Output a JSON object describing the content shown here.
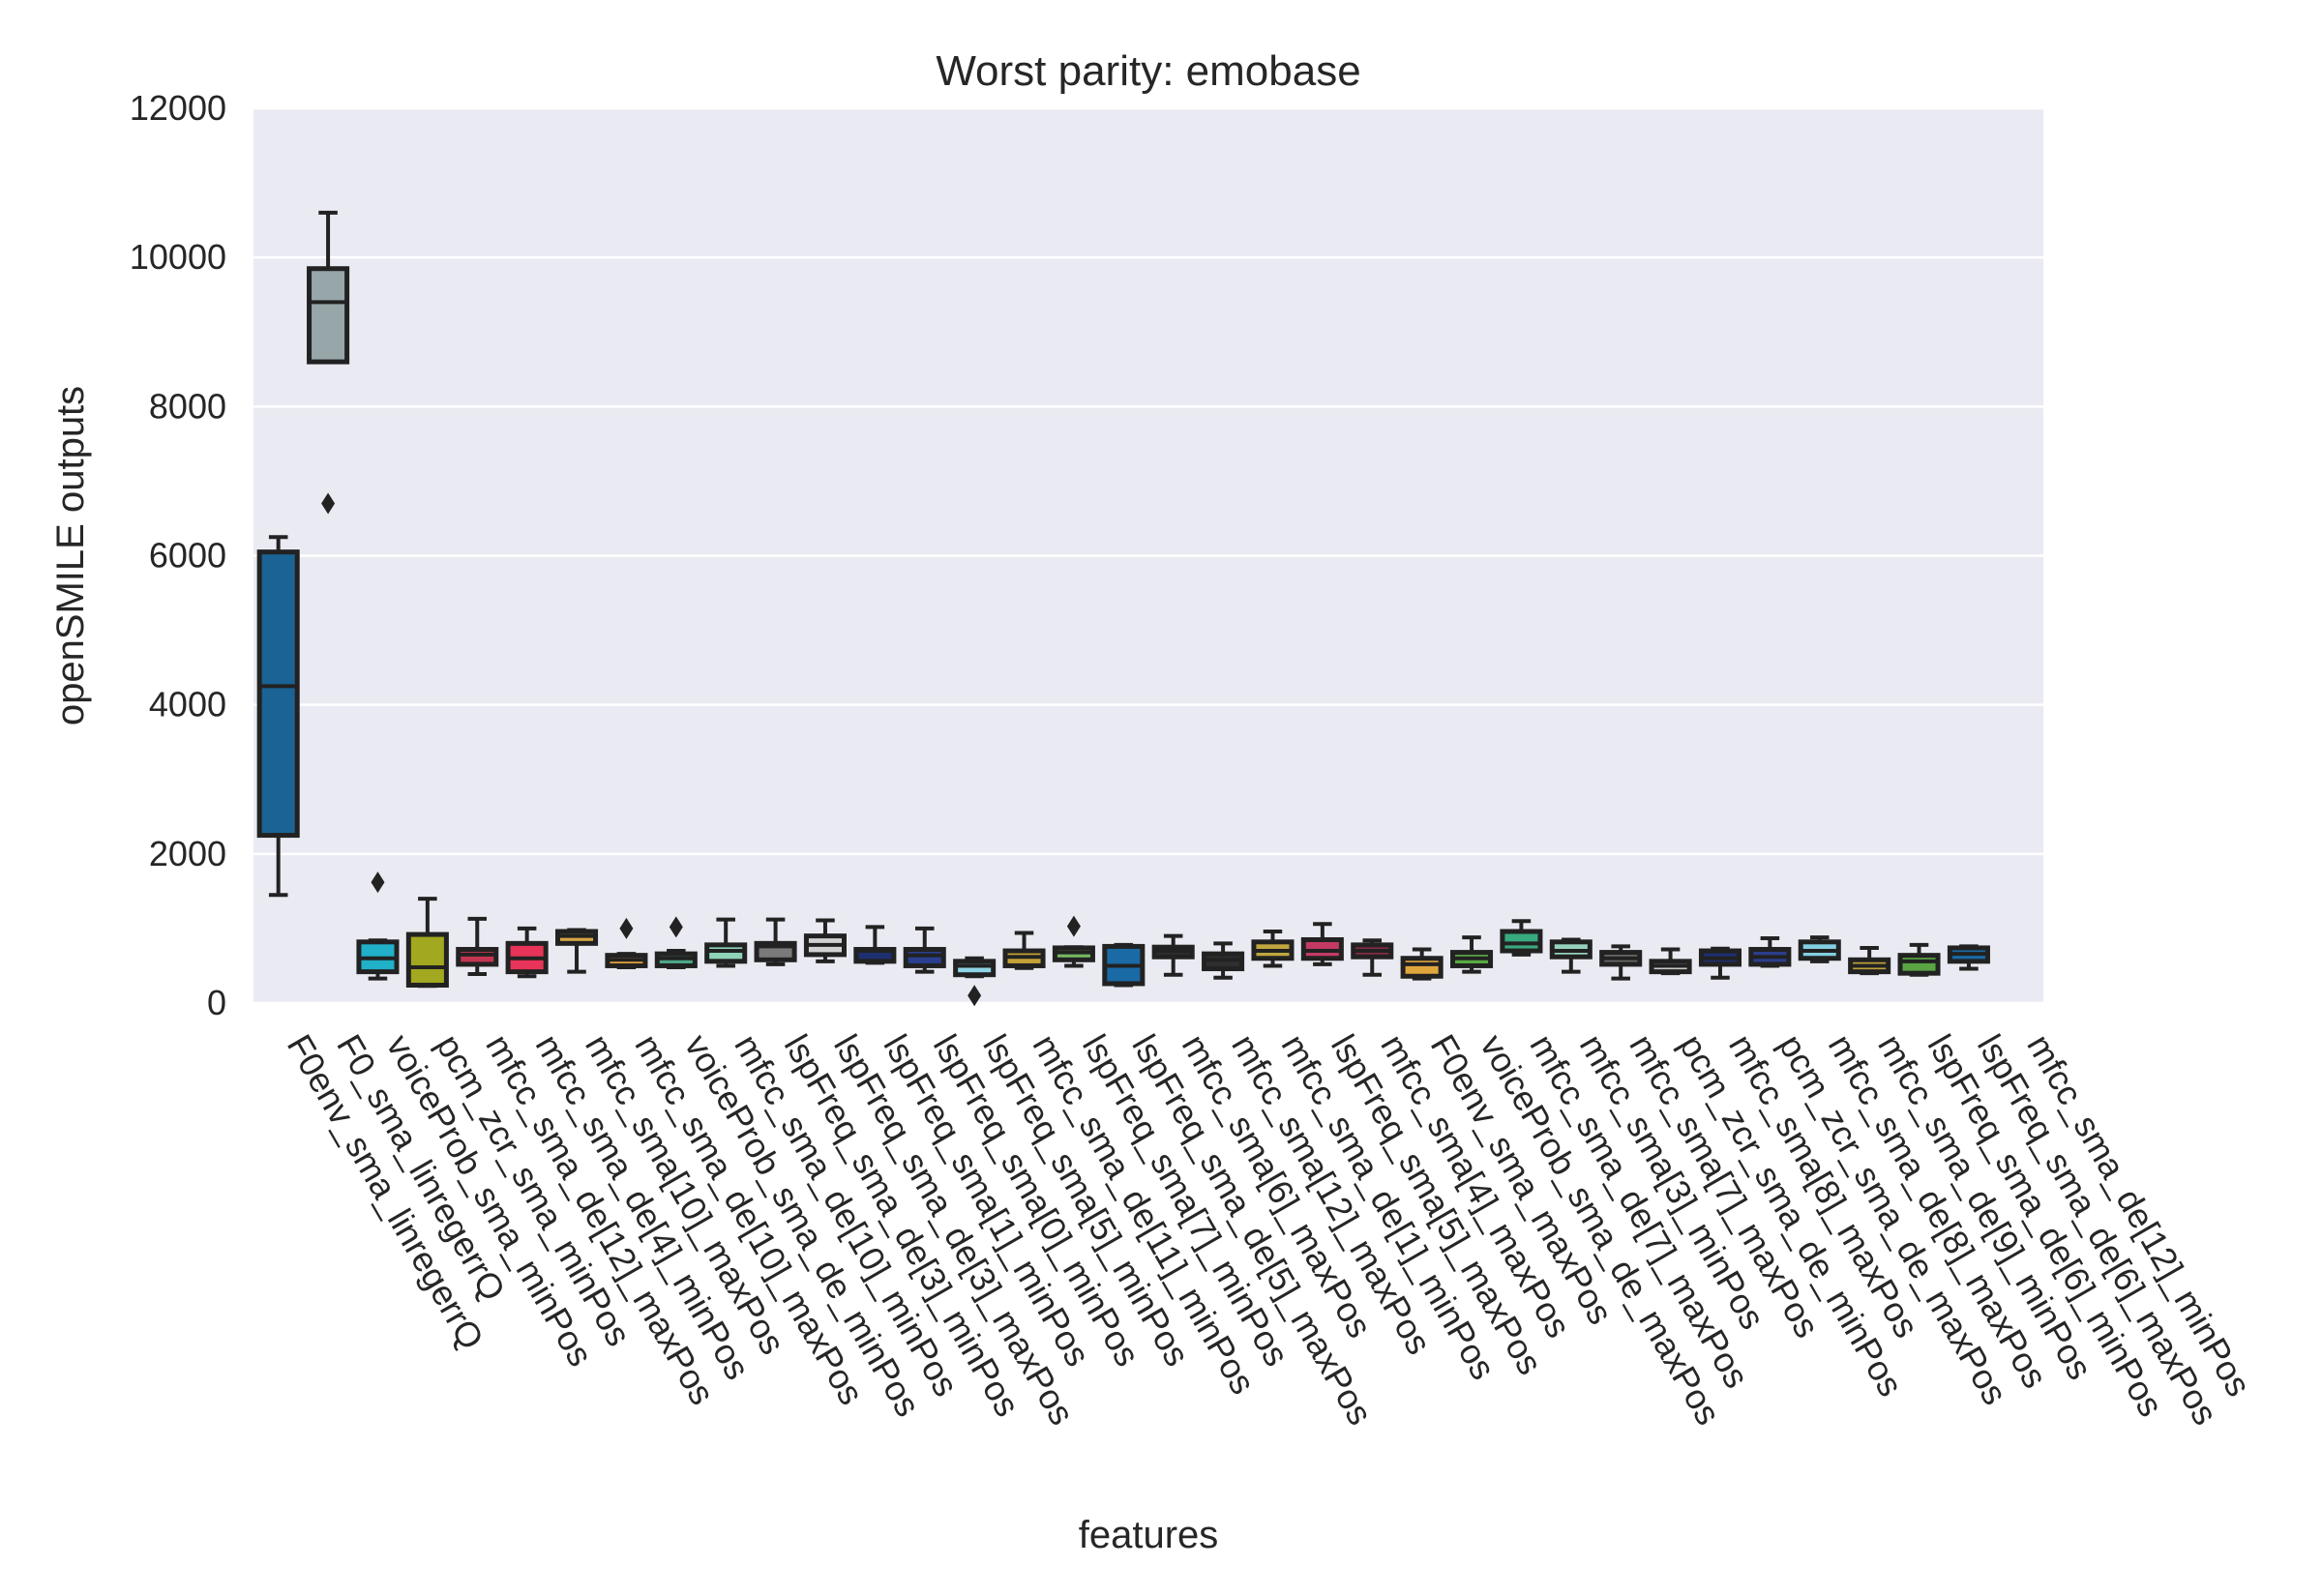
{
  "chart_data": {
    "type": "box",
    "title": "Worst parity: emobase",
    "xlabel": "features",
    "ylabel": "openSMILE outputs",
    "ylim": [
      0,
      12000
    ],
    "yticks": [
      0,
      2000,
      4000,
      6000,
      8000,
      10000,
      12000
    ],
    "grid": true,
    "background": "#eaeaf2",
    "edge_color": "#222222",
    "series": [
      {
        "category": "F0env_sma_linregerrQ",
        "min": 1450,
        "q1": 2250,
        "median": 4250,
        "q3": 6050,
        "max": 6250,
        "outliers": [],
        "color": "#1a6394"
      },
      {
        "category": "F0_sma_linregerrQ",
        "min": 8600,
        "q1": 8600,
        "median": 9400,
        "q3": 9850,
        "max": 10600,
        "outliers": [
          6700
        ],
        "color": "#97a6a9"
      },
      {
        "category": "voiceProb_sma_minPos",
        "min": 330,
        "q1": 420,
        "median": 600,
        "q3": 820,
        "max": 840,
        "outliers": [
          1620
        ],
        "color": "#20b0c8"
      },
      {
        "category": "pcm_zcr_sma_minPos",
        "min": 230,
        "q1": 240,
        "median": 480,
        "q3": 920,
        "max": 1400,
        "outliers": [],
        "color": "#a2a81f"
      },
      {
        "category": "mfcc_sma_de[12]_maxPos",
        "min": 390,
        "q1": 520,
        "median": 650,
        "q3": 720,
        "max": 1130,
        "outliers": [],
        "color": "#c43552"
      },
      {
        "category": "mfcc_sma_de[4]_minPos",
        "min": 360,
        "q1": 420,
        "median": 600,
        "q3": 800,
        "max": 1000,
        "outliers": [],
        "color": "#e83458"
      },
      {
        "category": "mfcc_sma[10]_maxPos",
        "min": 420,
        "q1": 800,
        "median": 900,
        "q3": 960,
        "max": 980,
        "outliers": [],
        "color": "#d8a545"
      },
      {
        "category": "mfcc_sma_de[10]_maxPos",
        "min": 480,
        "q1": 500,
        "median": 580,
        "q3": 640,
        "max": 660,
        "outliers": [
          1000
        ],
        "color": "#e8a53a"
      },
      {
        "category": "voiceProb_sma_de_minPos",
        "min": 480,
        "q1": 500,
        "median": 600,
        "q3": 660,
        "max": 700,
        "outliers": [
          1020
        ],
        "color": "#4da88a"
      },
      {
        "category": "mfcc_sma_de[10]_minPos",
        "min": 500,
        "q1": 560,
        "median": 700,
        "q3": 780,
        "max": 1120,
        "outliers": [],
        "color": "#8ed2b8"
      },
      {
        "category": "lspFreq_sma_de[3]_minPos",
        "min": 520,
        "q1": 580,
        "median": 760,
        "q3": 800,
        "max": 1120,
        "outliers": [],
        "color": "#7a7a7a"
      },
      {
        "category": "lspFreq_sma_de[3]_maxPos",
        "min": 560,
        "q1": 650,
        "median": 780,
        "q3": 900,
        "max": 1110,
        "outliers": [],
        "color": "#d2d2d2"
      },
      {
        "category": "lspFreq_sma[1]_minPos",
        "min": 540,
        "q1": 560,
        "median": 700,
        "q3": 720,
        "max": 1020,
        "outliers": [],
        "color": "#1e2f70"
      },
      {
        "category": "lspFreq_sma[0]_minPos",
        "min": 420,
        "q1": 500,
        "median": 640,
        "q3": 720,
        "max": 1000,
        "outliers": [],
        "color": "#2a3f8f"
      },
      {
        "category": "lspFreq_sma[5]_minPos",
        "min": 360,
        "q1": 380,
        "median": 500,
        "q3": 560,
        "max": 600,
        "outliers": [
          100
        ],
        "color": "#8fd4e6"
      },
      {
        "category": "mfcc_sma_de[11]_minPos",
        "min": 470,
        "q1": 500,
        "median": 620,
        "q3": 700,
        "max": 940,
        "outliers": [],
        "color": "#c4a238"
      },
      {
        "category": "lspFreq_sma[7]_minPos",
        "min": 500,
        "q1": 580,
        "median": 680,
        "q3": 740,
        "max": 750,
        "outliers": [
          1030
        ],
        "color": "#76b85f"
      },
      {
        "category": "lspFreq_sma_de[5]_maxPos",
        "min": 240,
        "q1": 260,
        "median": 500,
        "q3": 760,
        "max": 780,
        "outliers": [],
        "color": "#1a6aa6"
      },
      {
        "category": "mfcc_sma[6]_maxPos",
        "min": 380,
        "q1": 620,
        "median": 700,
        "q3": 750,
        "max": 900,
        "outliers": [],
        "color": "#2f2f2f"
      },
      {
        "category": "mfcc_sma[12]_maxPos",
        "min": 340,
        "q1": 460,
        "median": 580,
        "q3": 660,
        "max": 800,
        "outliers": [],
        "color": "#2f2f2f"
      },
      {
        "category": "mfcc_sma_de[1]_minPos",
        "min": 500,
        "q1": 600,
        "median": 700,
        "q3": 820,
        "max": 960,
        "outliers": [],
        "color": "#c0a640"
      },
      {
        "category": "lspFreq_sma[5]_maxPos",
        "min": 520,
        "q1": 600,
        "median": 700,
        "q3": 850,
        "max": 1060,
        "outliers": [],
        "color": "#c23a64"
      },
      {
        "category": "mfcc_sma[4]_maxPos",
        "min": 380,
        "q1": 620,
        "median": 700,
        "q3": 780,
        "max": 840,
        "outliers": [],
        "color": "#8a2a46"
      },
      {
        "category": "F0env_sma_maxPos",
        "min": 330,
        "q1": 360,
        "median": 520,
        "q3": 600,
        "max": 720,
        "outliers": [],
        "color": "#e0a63d"
      },
      {
        "category": "voiceProb_sma_de_maxPos",
        "min": 420,
        "q1": 500,
        "median": 600,
        "q3": 680,
        "max": 880,
        "outliers": [],
        "color": "#5aaa44"
      },
      {
        "category": "mfcc_sma_de[7]_maxPos",
        "min": 650,
        "q1": 700,
        "median": 800,
        "q3": 960,
        "max": 1100,
        "outliers": [],
        "color": "#38aa80"
      },
      {
        "category": "mfcc_sma[3]_minPos",
        "min": 420,
        "q1": 620,
        "median": 700,
        "q3": 820,
        "max": 850,
        "outliers": [],
        "color": "#96d2bf"
      },
      {
        "category": "mfcc_sma[7]_maxPos",
        "min": 330,
        "q1": 520,
        "median": 600,
        "q3": 680,
        "max": 760,
        "outliers": [],
        "color": "#6a6a6a"
      },
      {
        "category": "pcm_zcr_sma_de_minPos",
        "min": 400,
        "q1": 420,
        "median": 500,
        "q3": 560,
        "max": 720,
        "outliers": [],
        "color": "#c8c8c8"
      },
      {
        "category": "mfcc_sma[8]_maxPos",
        "min": 340,
        "q1": 520,
        "median": 600,
        "q3": 700,
        "max": 730,
        "outliers": [],
        "color": "#1e2f6e"
      },
      {
        "category": "pcm_zcr_sma_de_maxPos",
        "min": 500,
        "q1": 520,
        "median": 620,
        "q3": 720,
        "max": 870,
        "outliers": [],
        "color": "#2b3e8e"
      },
      {
        "category": "mfcc_sma_de[8]_maxPos",
        "min": 560,
        "q1": 600,
        "median": 700,
        "q3": 820,
        "max": 880,
        "outliers": [],
        "color": "#82cfe2"
      },
      {
        "category": "mfcc_sma_de[9]_minPos",
        "min": 400,
        "q1": 420,
        "median": 500,
        "q3": 580,
        "max": 740,
        "outliers": [],
        "color": "#bca03a"
      },
      {
        "category": "lspFreq_sma_de[6]_minPos",
        "min": 380,
        "q1": 400,
        "median": 560,
        "q3": 640,
        "max": 780,
        "outliers": [],
        "color": "#5aa444"
      },
      {
        "category": "lspFreq_sma_de[6]_maxPos",
        "min": 460,
        "q1": 560,
        "median": 660,
        "q3": 740,
        "max": 760,
        "outliers": [],
        "color": "#1a6aa6"
      },
      {
        "category": "mfcc_sma_de[12]_minPos",
        "min": 0,
        "q1": 0,
        "median": 0,
        "q3": 0,
        "max": 0,
        "outliers": [],
        "color": "#1a6aa6"
      }
    ]
  }
}
